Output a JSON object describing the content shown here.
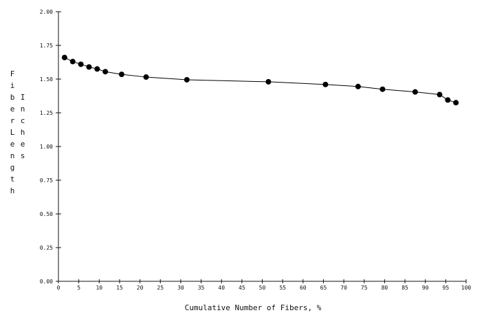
{
  "chart_data": {
    "type": "line",
    "title": "",
    "xlabel": "Cumulative Number of Fibers, %",
    "ylabel_outer": "Fiber Length",
    "ylabel_inner": "Inches",
    "xlim": [
      0,
      100
    ],
    "ylim": [
      0,
      2.0
    ],
    "x_ticks": [
      0,
      5,
      10,
      15,
      20,
      25,
      30,
      35,
      40,
      45,
      50,
      55,
      60,
      65,
      70,
      75,
      80,
      85,
      90,
      95,
      100
    ],
    "x_tick_labels": [
      "0",
      "5",
      "10",
      "15",
      "20",
      "25",
      "30",
      "35",
      "40",
      "45",
      "50",
      "55",
      "60",
      "65",
      "70",
      "75",
      "80",
      "85",
      "90",
      "95",
      "100"
    ],
    "y_ticks": [
      0,
      0.25,
      0.5,
      0.75,
      1.0,
      1.25,
      1.5,
      1.75,
      2.0
    ],
    "y_tick_labels": [
      "0.00",
      "0.25",
      "0.50",
      "0.75",
      "1.00",
      "1.25",
      "1.50",
      "1.75",
      "2.00"
    ],
    "grid": false,
    "legend": "none",
    "series": [
      {
        "color": "#000000",
        "x": [
          1.5,
          3.5,
          5.5,
          7.5,
          9.5,
          11.5,
          15.5,
          21.5,
          31.5,
          51.5,
          65.5,
          73.5,
          79.5,
          87.5,
          93.5,
          95.5,
          97.5
        ],
        "y": [
          1.66,
          1.63,
          1.61,
          1.59,
          1.575,
          1.555,
          1.535,
          1.515,
          1.495,
          1.48,
          1.46,
          1.445,
          1.425,
          1.405,
          1.385,
          1.345,
          1.325
        ]
      }
    ]
  }
}
